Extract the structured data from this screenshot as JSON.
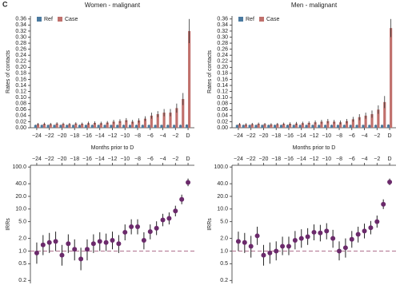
{
  "panel_label": "C",
  "chart_data": [
    {
      "type": "bar",
      "title": "Women - malignant",
      "xlabel": "Months prior to D",
      "ylabel": "Rates of contacts",
      "categories": [
        "−24",
        null,
        "−22",
        null,
        "−20",
        null,
        "−18",
        null,
        "−16",
        null,
        "−14",
        null,
        "−12",
        null,
        "−10",
        null,
        "−8",
        null,
        "−6",
        null,
        "−4",
        null,
        "−2",
        null,
        "D"
      ],
      "series": [
        {
          "name": "Ref",
          "color": "#4a7aa0",
          "values": [
            0.009,
            0.009,
            0.009,
            0.009,
            0.009,
            0.009,
            0.009,
            0.009,
            0.009,
            0.009,
            0.009,
            0.009,
            0.009,
            0.009,
            0.009,
            0.009,
            0.009,
            0.009,
            0.009,
            0.009,
            0.009,
            0.009,
            0.009,
            0.009,
            0.01
          ],
          "errors": [
            0.001,
            0.001,
            0.001,
            0.001,
            0.001,
            0.001,
            0.001,
            0.001,
            0.001,
            0.001,
            0.001,
            0.001,
            0.001,
            0.001,
            0.001,
            0.001,
            0.001,
            0.001,
            0.001,
            0.001,
            0.001,
            0.001,
            0.001,
            0.001,
            0.001
          ]
        },
        {
          "name": "Case",
          "color": "#c0706c",
          "values": [
            0.012,
            0.013,
            0.012,
            0.014,
            0.013,
            0.012,
            0.014,
            0.013,
            0.015,
            0.016,
            0.015,
            0.017,
            0.02,
            0.022,
            0.025,
            0.02,
            0.024,
            0.03,
            0.04,
            0.045,
            0.05,
            0.05,
            0.065,
            0.095,
            0.32
          ],
          "errors": [
            0.004,
            0.004,
            0.004,
            0.004,
            0.004,
            0.004,
            0.004,
            0.004,
            0.005,
            0.005,
            0.005,
            0.005,
            0.006,
            0.006,
            0.007,
            0.006,
            0.007,
            0.008,
            0.01,
            0.01,
            0.012,
            0.012,
            0.015,
            0.02,
            0.04
          ]
        }
      ],
      "ylim": [
        0,
        0.37
      ],
      "yticks": [
        {
          "value": 0,
          "label": "0.00"
        },
        {
          "value": 0.02,
          "label": "0.02"
        },
        {
          "value": 0.04,
          "label": "0.04"
        },
        {
          "value": 0.06,
          "label": "0.06"
        },
        {
          "value": 0.08,
          "label": "0.08"
        },
        {
          "value": 0.1,
          "label": "0.10"
        },
        {
          "value": 0.12,
          "label": "0.12"
        },
        {
          "value": 0.14,
          "label": "0.14"
        },
        {
          "value": 0.16,
          "label": "0.16"
        },
        {
          "value": 0.18,
          "label": "0.18"
        },
        {
          "value": 0.2,
          "label": "0.20"
        },
        {
          "value": 0.22,
          "label": "0.22"
        },
        {
          "value": 0.24,
          "label": "0.24"
        },
        {
          "value": 0.26,
          "label": "0.26"
        },
        {
          "value": 0.28,
          "label": "0.28"
        },
        {
          "value": 0.3,
          "label": "0.30"
        },
        {
          "value": 0.32,
          "label": "0.32"
        },
        {
          "value": 0.34,
          "label": "0.34"
        },
        {
          "value": 0.36,
          "label": "0.36"
        }
      ],
      "legend": "upper left"
    },
    {
      "type": "bar",
      "title": "Men - malignant",
      "xlabel": "Months prior to D",
      "ylabel": "Rates of contacts",
      "categories": [
        "−24",
        null,
        "−22",
        null,
        "−20",
        null,
        "−18",
        null,
        "−16",
        null,
        "−14",
        null,
        "−12",
        null,
        "−10",
        null,
        "−8",
        null,
        "−6",
        null,
        "−4",
        null,
        "−2",
        null,
        "D"
      ],
      "series": [
        {
          "name": "Ref",
          "color": "#4a7aa0",
          "values": [
            0.009,
            0.009,
            0.009,
            0.009,
            0.009,
            0.009,
            0.009,
            0.009,
            0.009,
            0.009,
            0.009,
            0.009,
            0.009,
            0.009,
            0.009,
            0.009,
            0.009,
            0.009,
            0.009,
            0.009,
            0.009,
            0.009,
            0.009,
            0.009,
            0.01
          ],
          "errors": [
            0.001,
            0.001,
            0.001,
            0.001,
            0.001,
            0.001,
            0.001,
            0.001,
            0.001,
            0.001,
            0.001,
            0.001,
            0.001,
            0.001,
            0.001,
            0.001,
            0.001,
            0.001,
            0.001,
            0.001,
            0.001,
            0.001,
            0.001,
            0.001,
            0.001
          ]
        },
        {
          "name": "Case",
          "color": "#c0706c",
          "values": [
            0.012,
            0.011,
            0.012,
            0.013,
            0.012,
            0.011,
            0.012,
            0.013,
            0.013,
            0.014,
            0.015,
            0.016,
            0.018,
            0.02,
            0.022,
            0.02,
            0.018,
            0.022,
            0.028,
            0.035,
            0.04,
            0.045,
            0.06,
            0.085,
            0.33
          ],
          "errors": [
            0.004,
            0.004,
            0.004,
            0.004,
            0.004,
            0.004,
            0.004,
            0.004,
            0.005,
            0.005,
            0.005,
            0.005,
            0.006,
            0.006,
            0.007,
            0.006,
            0.006,
            0.007,
            0.008,
            0.01,
            0.01,
            0.012,
            0.014,
            0.02,
            0.03
          ]
        }
      ],
      "ylim": [
        0,
        0.37
      ],
      "yticks": [
        {
          "value": 0,
          "label": "0.00"
        },
        {
          "value": 0.02,
          "label": "0.02"
        },
        {
          "value": 0.04,
          "label": "0.04"
        },
        {
          "value": 0.06,
          "label": "0.06"
        },
        {
          "value": 0.08,
          "label": "0.08"
        },
        {
          "value": 0.1,
          "label": "0.10"
        },
        {
          "value": 0.12,
          "label": "0.12"
        },
        {
          "value": 0.14,
          "label": "0.14"
        },
        {
          "value": 0.16,
          "label": "0.16"
        },
        {
          "value": 0.18,
          "label": "0.18"
        },
        {
          "value": 0.2,
          "label": "0.20"
        },
        {
          "value": 0.22,
          "label": "0.22"
        },
        {
          "value": 0.24,
          "label": "0.24"
        },
        {
          "value": 0.26,
          "label": "0.26"
        },
        {
          "value": 0.28,
          "label": "0.28"
        },
        {
          "value": 0.3,
          "label": "0.30"
        },
        {
          "value": 0.32,
          "label": "0.32"
        },
        {
          "value": 0.34,
          "label": "0.34"
        },
        {
          "value": 0.36,
          "label": "0.36"
        }
      ],
      "legend": "upper left"
    },
    {
      "type": "errorbar",
      "ylabel": "IRRs",
      "log_scale": true,
      "xaxis_position": "top",
      "color": "#6b2a6b",
      "reference_line": 1,
      "reference_color": "#b0708e",
      "categories": [
        "−24",
        null,
        "−22",
        null,
        "−20",
        null,
        "−18",
        null,
        "−16",
        null,
        "−14",
        null,
        "−12",
        null,
        "−10",
        null,
        "−8",
        null,
        "−6",
        null,
        "−4",
        null,
        "−2",
        null,
        "D"
      ],
      "values": [
        0.9,
        1.4,
        1.6,
        1.7,
        0.8,
        1.5,
        1.1,
        0.65,
        1.1,
        1.5,
        1.7,
        1.6,
        1.8,
        1.5,
        2.8,
        3.8,
        3.8,
        1.8,
        2.9,
        3.5,
        5.5,
        6.0,
        9.0,
        17,
        43
      ],
      "lower": [
        0.5,
        0.8,
        0.9,
        1.0,
        0.45,
        0.9,
        0.6,
        0.35,
        0.6,
        0.9,
        1.0,
        1.0,
        1.1,
        0.9,
        1.8,
        2.5,
        2.5,
        1.1,
        1.9,
        2.4,
        3.9,
        4.3,
        6.7,
        13,
        35
      ],
      "upper": [
        1.6,
        2.4,
        2.7,
        2.9,
        1.4,
        2.5,
        1.9,
        1.2,
        1.9,
        2.5,
        2.8,
        2.6,
        2.9,
        2.4,
        4.3,
        5.7,
        5.7,
        2.8,
        4.3,
        5.1,
        7.7,
        8.3,
        12,
        22,
        53
      ],
      "ylim": [
        0.17,
        110
      ],
      "yticks": [
        0.2,
        0.5,
        {
          "value": 1,
          "label": "1.0"
        },
        {
          "value": 2,
          "label": "2.0"
        },
        {
          "value": 5,
          "label": "5.0"
        },
        {
          "value": 10,
          "label": "10.0"
        },
        {
          "value": 20,
          "label": "20.0"
        },
        {
          "value": 40,
          "label": "40.0"
        },
        {
          "value": 100,
          "label": "100.0"
        }
      ]
    },
    {
      "type": "errorbar",
      "ylabel": "IRRs",
      "log_scale": true,
      "xaxis_position": "top",
      "color": "#6b2a6b",
      "reference_line": 1,
      "reference_color": "#b0708e",
      "categories": [
        "−24",
        null,
        "−22",
        null,
        "−20",
        null,
        "−18",
        null,
        "−16",
        null,
        "−14",
        null,
        "−12",
        null,
        "−10",
        null,
        "−8",
        null,
        "−6",
        null,
        "−4",
        null,
        "−2",
        null,
        "D"
      ],
      "values": [
        1.7,
        1.6,
        1.3,
        2.3,
        0.8,
        0.9,
        1.0,
        1.3,
        1.3,
        1.8,
        2.0,
        2.2,
        2.8,
        2.7,
        3.0,
        2.0,
        1.0,
        1.2,
        1.9,
        2.5,
        3.0,
        3.6,
        5.0,
        13,
        44
      ],
      "lower": [
        1.0,
        0.9,
        0.7,
        1.4,
        0.45,
        0.5,
        0.6,
        0.8,
        0.8,
        1.1,
        1.2,
        1.4,
        1.8,
        1.7,
        1.9,
        1.2,
        0.6,
        0.7,
        1.2,
        1.6,
        2.0,
        2.5,
        3.6,
        10,
        37
      ],
      "upper": [
        2.9,
        2.7,
        2.3,
        3.8,
        1.4,
        1.6,
        1.7,
        2.2,
        2.2,
        3.0,
        3.3,
        3.5,
        4.3,
        4.2,
        4.6,
        3.2,
        1.7,
        2.0,
        3.0,
        3.8,
        4.5,
        5.2,
        7.0,
        17,
        53
      ],
      "ylim": [
        0.17,
        110
      ],
      "yticks": [
        0.2,
        0.5,
        {
          "value": 1,
          "label": "1.0"
        },
        {
          "value": 2,
          "label": "2.0"
        },
        {
          "value": 5,
          "label": "5.0"
        },
        {
          "value": 10,
          "label": "10.0"
        },
        {
          "value": 20,
          "label": "20.0"
        },
        {
          "value": 40,
          "label": "40.0"
        },
        {
          "value": 100,
          "label": "100.0"
        }
      ]
    }
  ]
}
